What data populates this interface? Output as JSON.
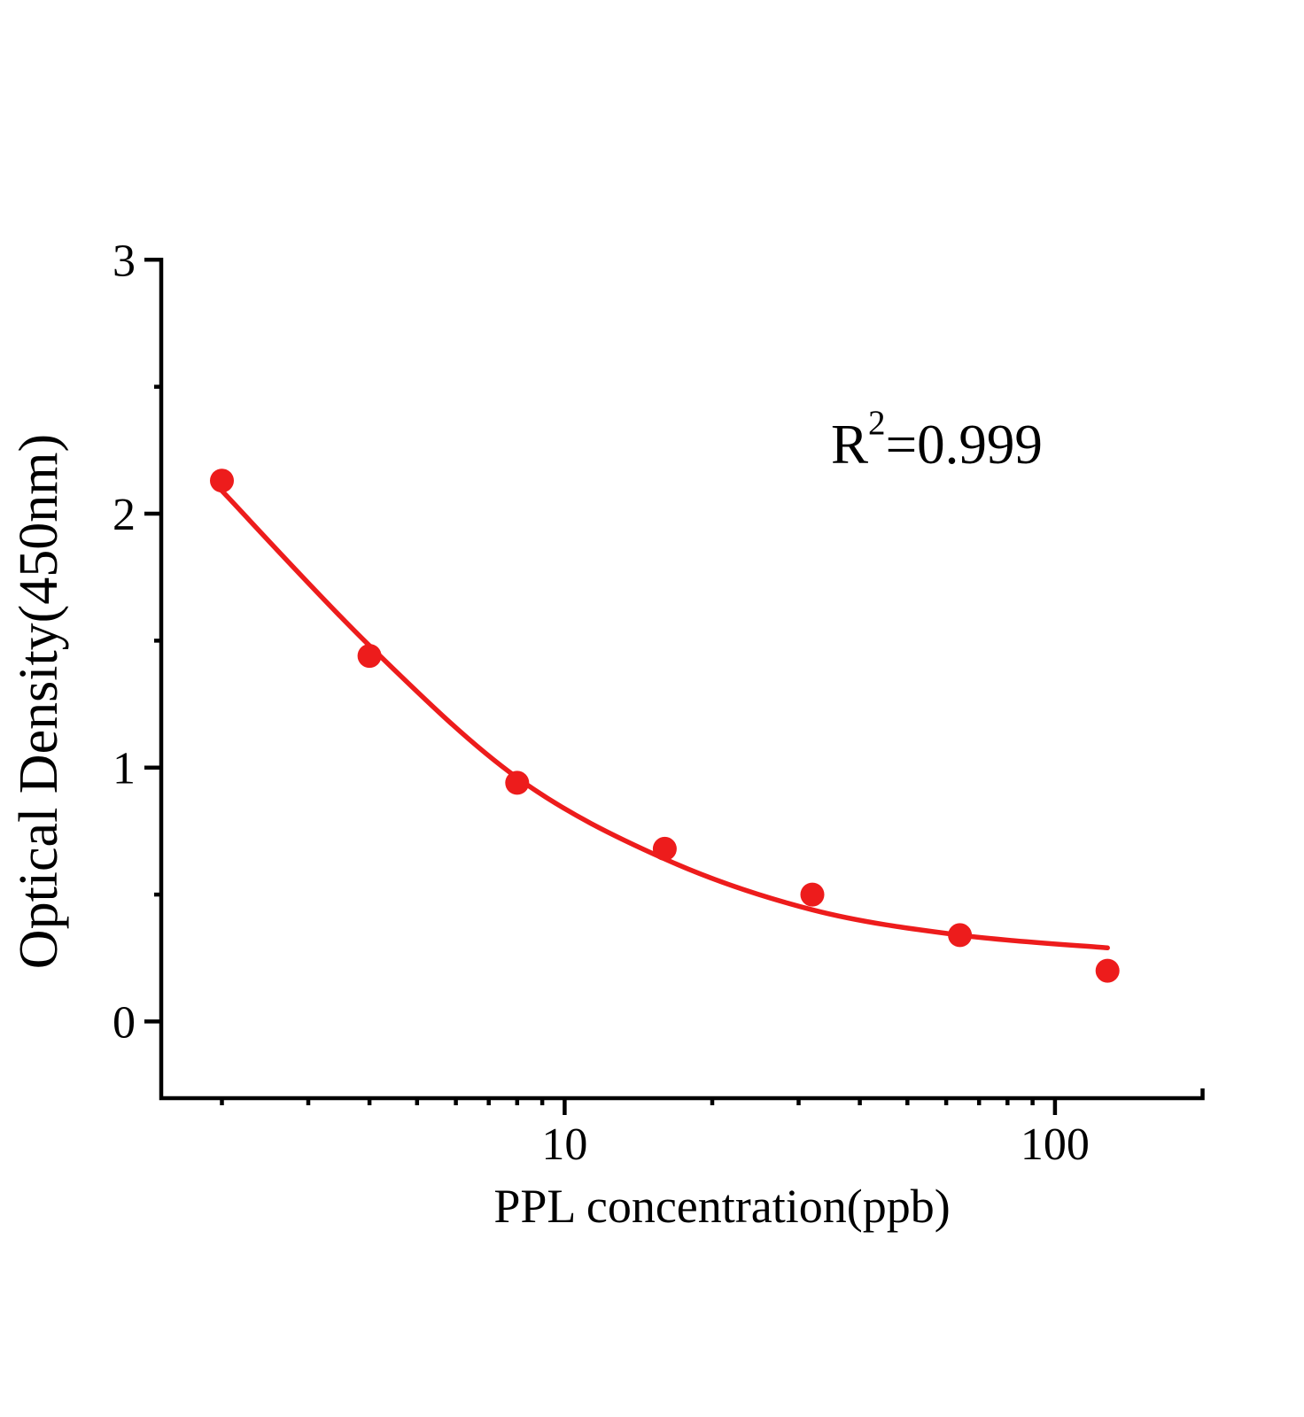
{
  "page": {
    "background_color": "#ffffff",
    "text_color": "#000000"
  },
  "chart_data": {
    "type": "scatter",
    "title": "",
    "xlabel": "PPL concentration(ppb)",
    "ylabel": "Optical Density(450nm)",
    "annotation": {
      "base": "R",
      "sup": "2",
      "rest": "=0.999"
    },
    "r_squared": 0.999,
    "x_scale": "log",
    "y_scale": "linear",
    "xlim": [
      1.5,
      202
    ],
    "ylim": [
      -0.3,
      3.0
    ],
    "grid": false,
    "legend_position": "none",
    "axis_color": "#000000",
    "accent_color": "#ed1c1c",
    "x_major_ticks": [
      10,
      100
    ],
    "x_major_tick_labels": [
      "10",
      "100"
    ],
    "x_minor_ticks": [
      2,
      3,
      4,
      5,
      6,
      7,
      8,
      9,
      20,
      30,
      40,
      50,
      60,
      70,
      80,
      90
    ],
    "x_axis_end_tick": 200,
    "y_major_ticks": [
      3,
      2,
      1,
      0
    ],
    "y_major_tick_labels": [
      "3",
      "2",
      "1",
      "0"
    ],
    "y_minor_ticks": [
      2.5,
      1.5,
      0.5
    ],
    "series": [
      {
        "name": "standard-data-points",
        "kind": "scatter",
        "color": "#ed1c1c",
        "marker": "circle",
        "x": [
          2,
          4,
          8,
          16,
          32,
          64,
          128
        ],
        "y": [
          2.13,
          1.44,
          0.94,
          0.68,
          0.5,
          0.34,
          0.2
        ]
      },
      {
        "name": "fitted-curve",
        "kind": "line",
        "color": "#ed1c1c",
        "x": [
          2,
          4,
          8,
          16,
          32,
          64,
          128
        ],
        "y": [
          2.09,
          1.48,
          0.96,
          0.64,
          0.44,
          0.34,
          0.29
        ]
      }
    ]
  }
}
